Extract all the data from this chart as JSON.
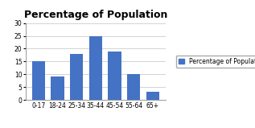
{
  "title": "Percentage of Population",
  "categories": [
    "0-17",
    "18-24",
    "25-34",
    "35-44",
    "45-54",
    "55-64",
    "65+"
  ],
  "values": [
    15,
    9,
    18,
    25,
    19,
    10,
    3
  ],
  "bar_color": "#4472C4",
  "ylim": [
    0,
    30
  ],
  "yticks": [
    0,
    5,
    10,
    15,
    20,
    25,
    30
  ],
  "legend_label": "Percentage of Population",
  "background_color": "#ffffff",
  "plot_bg_color": "#ffffff",
  "title_fontsize": 9,
  "tick_fontsize": 5.5,
  "legend_fontsize": 5.5,
  "grid_color": "#cccccc",
  "spine_color": "#888888"
}
